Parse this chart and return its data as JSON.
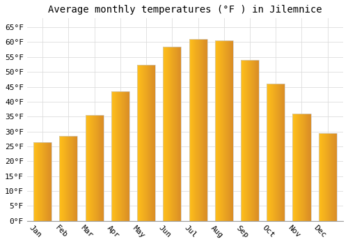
{
  "title": "Average monthly temperatures (°F ) in Jilemnice",
  "months": [
    "Jan",
    "Feb",
    "Mar",
    "Apr",
    "May",
    "Jun",
    "Jul",
    "Aug",
    "Sep",
    "Oct",
    "Nov",
    "Dec"
  ],
  "values": [
    26.5,
    28.5,
    35.5,
    43.5,
    52.5,
    58.5,
    61.0,
    60.5,
    54.0,
    46.0,
    36.0,
    29.5
  ],
  "bar_color_left": "#FFCC44",
  "bar_color_right": "#F0A020",
  "bar_edge_color": "#DDDDDD",
  "background_color": "#FFFFFF",
  "grid_color": "#DDDDDD",
  "ylim": [
    0,
    68
  ],
  "yticks": [
    0,
    5,
    10,
    15,
    20,
    25,
    30,
    35,
    40,
    45,
    50,
    55,
    60,
    65
  ],
  "title_fontsize": 10,
  "tick_fontsize": 8,
  "xlabel_rotation": -45
}
